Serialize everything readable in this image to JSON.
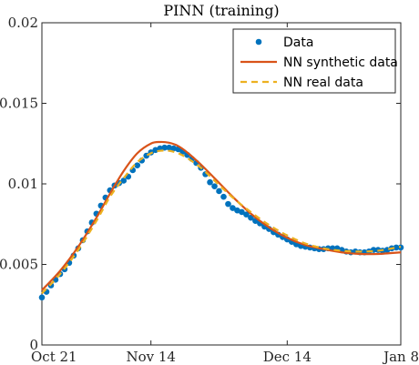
{
  "chart_data": {
    "type": "line",
    "title": "PINN (training)",
    "xlabel": "",
    "ylabel": "",
    "x_ticks": [
      "Oct 21",
      "Nov 14",
      "Dec 14",
      "Jan 8"
    ],
    "x_tick_dates": [
      "2020-10-21",
      "2020-11-14",
      "2020-12-14",
      "2021-01-08"
    ],
    "xlim": [
      "2020-10-21",
      "2021-01-08"
    ],
    "ylim": [
      0,
      0.02
    ],
    "y_ticks": [
      "0",
      "0.005",
      "0.01",
      "0.015",
      "0.02"
    ],
    "grid": false,
    "legend_position": "top-right",
    "series": [
      {
        "name": "Data",
        "style": "markers",
        "color": "#0072BD",
        "x": [
          "2020-10-21",
          "2020-10-22",
          "2020-10-23",
          "2020-10-24",
          "2020-10-25",
          "2020-10-26",
          "2020-10-27",
          "2020-10-28",
          "2020-10-29",
          "2020-10-30",
          "2020-10-31",
          "2020-11-01",
          "2020-11-02",
          "2020-11-03",
          "2020-11-04",
          "2020-11-05",
          "2020-11-06",
          "2020-11-07",
          "2020-11-08",
          "2020-11-09",
          "2020-11-10",
          "2020-11-11",
          "2020-11-12",
          "2020-11-13",
          "2020-11-14",
          "2020-11-15",
          "2020-11-16",
          "2020-11-17",
          "2020-11-18",
          "2020-11-19",
          "2020-11-20",
          "2020-11-21",
          "2020-11-22",
          "2020-11-23",
          "2020-11-24",
          "2020-11-25",
          "2020-11-26",
          "2020-11-27",
          "2020-11-28",
          "2020-11-29",
          "2020-11-30",
          "2020-12-01",
          "2020-12-02",
          "2020-12-03",
          "2020-12-04",
          "2020-12-05",
          "2020-12-06",
          "2020-12-07",
          "2020-12-08",
          "2020-12-09",
          "2020-12-10",
          "2020-12-11",
          "2020-12-12",
          "2020-12-13",
          "2020-12-14",
          "2020-12-15",
          "2020-12-16",
          "2020-12-17",
          "2020-12-18",
          "2020-12-19",
          "2020-12-20",
          "2020-12-21",
          "2020-12-22",
          "2020-12-23",
          "2020-12-24",
          "2020-12-25",
          "2020-12-26",
          "2020-12-27",
          "2020-12-28",
          "2020-12-29",
          "2020-12-30",
          "2020-12-31",
          "2021-01-01",
          "2021-01-02",
          "2021-01-03",
          "2021-01-04",
          "2021-01-05",
          "2021-01-06",
          "2021-01-07",
          "2021-01-08"
        ],
        "y": [
          0.00295,
          0.0033,
          0.0037,
          0.00405,
          0.0044,
          0.0047,
          0.0051,
          0.00555,
          0.006,
          0.0065,
          0.00705,
          0.0076,
          0.00815,
          0.00865,
          0.00915,
          0.0096,
          0.0099,
          0.01005,
          0.0102,
          0.01045,
          0.01085,
          0.01115,
          0.01145,
          0.01175,
          0.01195,
          0.0121,
          0.0122,
          0.01225,
          0.01225,
          0.0122,
          0.01215,
          0.012,
          0.0118,
          0.01155,
          0.0113,
          0.011,
          0.0106,
          0.0101,
          0.00985,
          0.00955,
          0.0092,
          0.00875,
          0.0085,
          0.00835,
          0.00825,
          0.0081,
          0.0079,
          0.0077,
          0.00755,
          0.00735,
          0.0072,
          0.007,
          0.00685,
          0.0067,
          0.00655,
          0.0064,
          0.00625,
          0.00615,
          0.0061,
          0.00605,
          0.006,
          0.00595,
          0.00595,
          0.006,
          0.006,
          0.006,
          0.0059,
          0.0058,
          0.00575,
          0.0058,
          0.00575,
          0.00575,
          0.0058,
          0.0059,
          0.0059,
          0.00585,
          0.0059,
          0.006,
          0.00605,
          0.00605
        ]
      },
      {
        "name": "NN synthetic data",
        "style": "solid",
        "color": "#D95319",
        "x": [
          "2020-10-21",
          "2020-10-25",
          "2020-10-29",
          "2020-11-02",
          "2020-11-05",
          "2020-11-08",
          "2020-11-11",
          "2020-11-14",
          "2020-11-16",
          "2020-11-18",
          "2020-11-20",
          "2020-11-22",
          "2020-11-25",
          "2020-11-28",
          "2020-12-02",
          "2020-12-06",
          "2020-12-10",
          "2020-12-14",
          "2020-12-18",
          "2020-12-22",
          "2020-12-26",
          "2020-12-30",
          "2021-01-03",
          "2021-01-08"
        ],
        "y": [
          0.0034,
          0.0046,
          0.0061,
          0.0079,
          0.0094,
          0.0108,
          0.0119,
          0.0125,
          0.0126,
          0.01255,
          0.01235,
          0.01195,
          0.0112,
          0.01035,
          0.0092,
          0.00815,
          0.0073,
          0.00665,
          0.0062,
          0.00595,
          0.00575,
          0.00565,
          0.00565,
          0.00575
        ]
      },
      {
        "name": "NN real data",
        "style": "dashed",
        "color": "#EDB120",
        "x": [
          "2020-10-21",
          "2020-10-25",
          "2020-10-29",
          "2020-11-02",
          "2020-11-05",
          "2020-11-08",
          "2020-11-11",
          "2020-11-14",
          "2020-11-16",
          "2020-11-18",
          "2020-11-20",
          "2020-11-22",
          "2020-11-25",
          "2020-11-28",
          "2020-12-02",
          "2020-12-06",
          "2020-12-10",
          "2020-12-14",
          "2020-12-18",
          "2020-12-22",
          "2020-12-26",
          "2020-12-30",
          "2021-01-03",
          "2021-01-08"
        ],
        "y": [
          0.0032,
          0.0044,
          0.0059,
          0.0077,
          0.0092,
          0.01035,
          0.01135,
          0.0119,
          0.01205,
          0.01205,
          0.0119,
          0.0116,
          0.011,
          0.0102,
          0.00915,
          0.00825,
          0.00745,
          0.0068,
          0.0063,
          0.006,
          0.00585,
          0.0058,
          0.00585,
          0.0061
        ]
      }
    ]
  }
}
